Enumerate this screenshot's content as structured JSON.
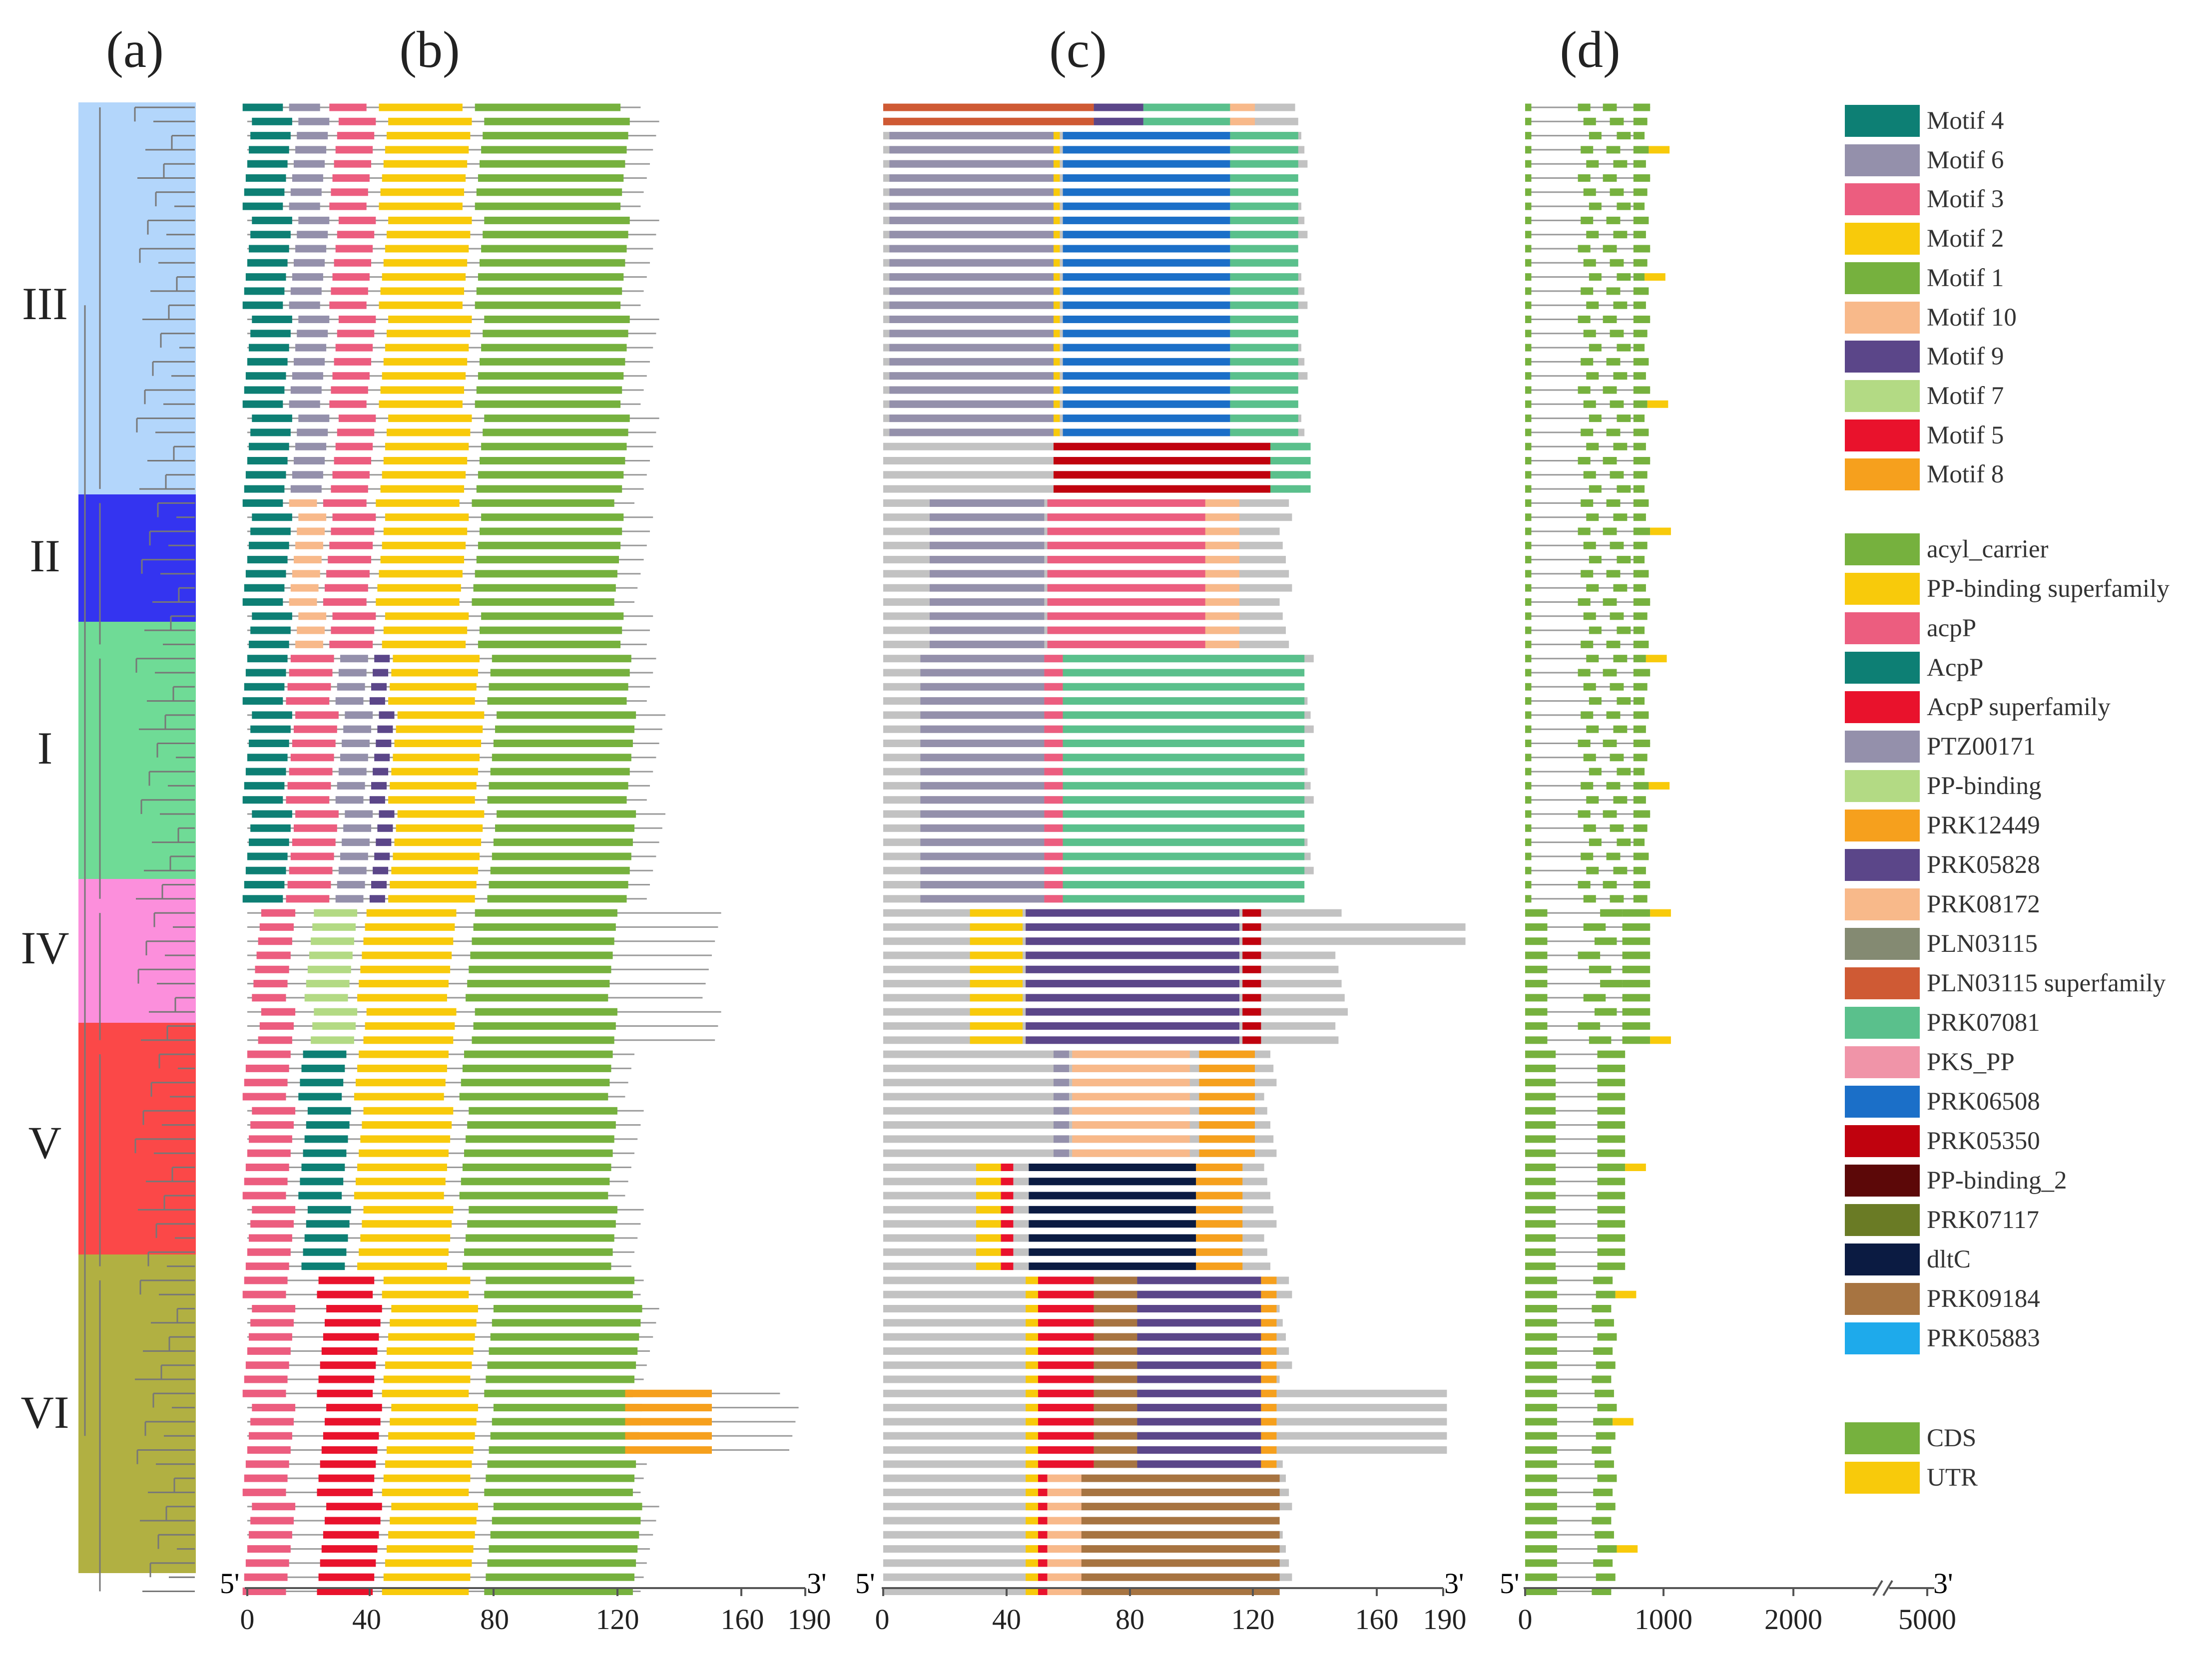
{
  "panels": {
    "a": "(a)",
    "b": "(b)",
    "c": "(c)",
    "d": "(d)"
  },
  "clades": [
    {
      "label": "III",
      "color": "#b3d6fb",
      "rows": [
        0,
        27
      ]
    },
    {
      "label": "II",
      "color": "#3434f0",
      "rows": [
        28,
        38
      ]
    },
    {
      "label": "I",
      "color": "#6fdb96",
      "rows": [
        39,
        56
      ]
    },
    {
      "label": "IV",
      "color": "#fc8fdc",
      "rows": [
        57,
        66
      ]
    },
    {
      "label": "V",
      "color": "#fb4848",
      "rows": [
        67,
        82
      ]
    },
    {
      "label": "VI",
      "color": "#b1b042",
      "rows": [
        83,
        105
      ]
    }
  ],
  "axes": {
    "b": {
      "end5": "5'",
      "end3": "3'",
      "ticks": [
        "0",
        "40",
        "80",
        "120",
        "160",
        "190"
      ]
    },
    "c": {
      "end5": "5'",
      "end3": "3'",
      "ticks": [
        "0",
        "40",
        "80",
        "120",
        "160",
        "190"
      ]
    },
    "d": {
      "end5": "5'",
      "end3": "3'",
      "ticks": [
        "0",
        "1000",
        "2000",
        "5000"
      ]
    }
  },
  "legend_motifs": [
    {
      "label": "Motif 4",
      "color": "#0d7f74"
    },
    {
      "label": "Motif 6",
      "color": "#9490ab"
    },
    {
      "label": "Motif 3",
      "color": "#ec5d7f"
    },
    {
      "label": "Motif 2",
      "color": "#f8ca0b"
    },
    {
      "label": "Motif 1",
      "color": "#76b13e"
    },
    {
      "label": "Motif 10",
      "color": "#f8b98a"
    },
    {
      "label": "Motif 9",
      "color": "#5b4689"
    },
    {
      "label": "Motif 7",
      "color": "#b3da84"
    },
    {
      "label": "Motif 5",
      "color": "#e9122c"
    },
    {
      "label": "Motif 8",
      "color": "#f6a01d"
    }
  ],
  "legend_domains": [
    {
      "label": "acyl_carrier",
      "color": "#76b13e"
    },
    {
      "label": "PP-binding superfamily",
      "color": "#f8ca0b"
    },
    {
      "label": "acpP",
      "color": "#ec5d7f"
    },
    {
      "label": "AcpP",
      "color": "#0d7f74"
    },
    {
      "label": "AcpP superfamily",
      "color": "#e9122c"
    },
    {
      "label": "PTZ00171",
      "color": "#9490ab"
    },
    {
      "label": "PP-binding",
      "color": "#b3da84"
    },
    {
      "label": "PRK12449",
      "color": "#f6a01d"
    },
    {
      "label": "PRK05828",
      "color": "#5b4689"
    },
    {
      "label": "PRK08172",
      "color": "#f8b98a"
    },
    {
      "label": "PLN03115",
      "color": "#848a72"
    },
    {
      "label": "PLN03115 superfamily",
      "color": "#cf5a34"
    },
    {
      "label": "PRK07081",
      "color": "#5ac08c"
    },
    {
      "label": "PKS_PP",
      "color": "#f094a8"
    },
    {
      "label": "PRK06508",
      "color": "#1b6fc8"
    },
    {
      "label": "PRK05350",
      "color": "#c0020e"
    },
    {
      "label": "PP-binding_2",
      "color": "#5c0808"
    },
    {
      "label": "PRK07117",
      "color": "#6a7b25"
    },
    {
      "label": "dltC",
      "color": "#0b1b42"
    },
    {
      "label": "PRK09184",
      "color": "#a77441"
    },
    {
      "label": "PRK05883",
      "color": "#1eaaeb"
    }
  ],
  "legend_gene": [
    {
      "label": "CDS",
      "color": "#76b13e"
    },
    {
      "label": "UTR",
      "color": "#f8ca0b"
    }
  ],
  "colors": {
    "backbone": "#9a9a9a",
    "protein_bar": "#c2c2c2",
    "axis": "#555555",
    "tree_line": "#777777"
  }
}
